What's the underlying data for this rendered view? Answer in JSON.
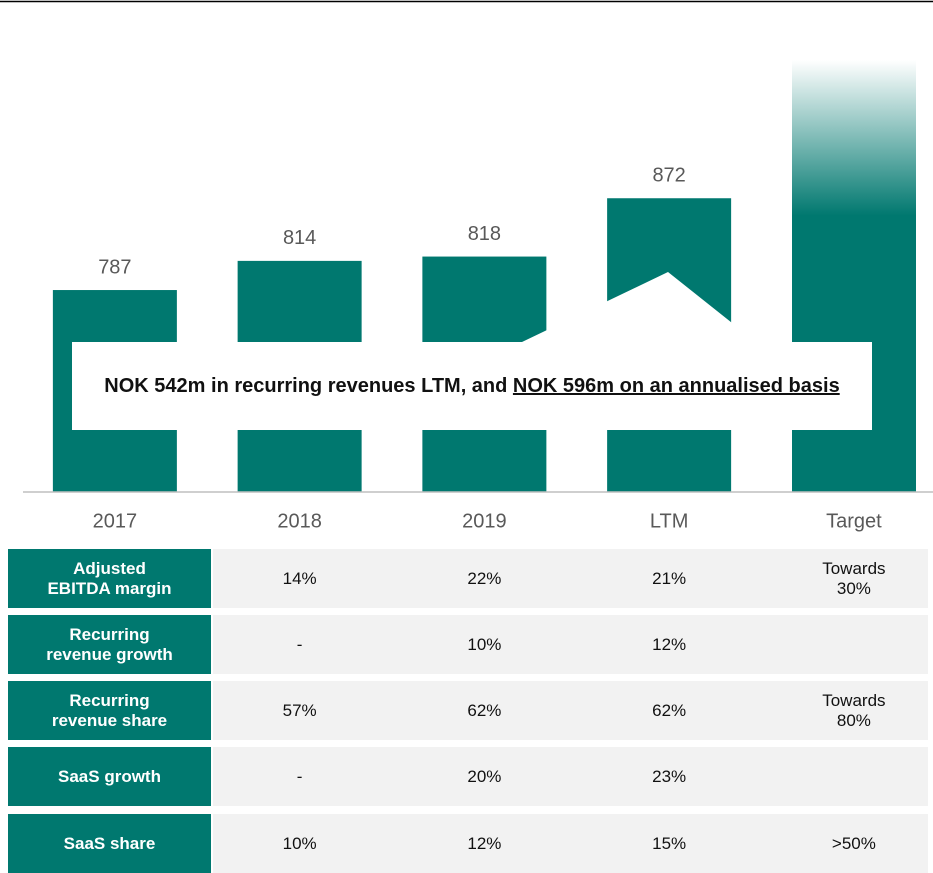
{
  "chart_data": {
    "type": "bar",
    "categories": [
      "2017",
      "2018",
      "2019",
      "LTM",
      "Target"
    ],
    "values": [
      787,
      814,
      818,
      872,
      null
    ],
    "color": "#00786f",
    "ylim": [
      600,
      1000
    ]
  },
  "callout": {
    "text": "NOK 542m in recurring revenues LTM, and ",
    "underlined": "NOK 596m on an annualised basis"
  },
  "table": {
    "rows": [
      {
        "label": "Adjusted\nEBITDA margin",
        "cells": [
          "14%",
          "22%",
          "21%",
          "Towards\n30%"
        ]
      },
      {
        "label": "Recurring\nrevenue growth",
        "cells": [
          "-",
          "10%",
          "12%",
          null
        ]
      },
      {
        "label": "Recurring\nrevenue share",
        "cells": [
          "57%",
          "62%",
          "62%",
          "Towards\n80%"
        ]
      },
      {
        "label": "SaaS growth",
        "cells": [
          "-",
          "20%",
          "23%",
          null
        ]
      },
      {
        "label": "SaaS share",
        "cells": [
          "10%",
          "12%",
          "15%",
          ">50%"
        ]
      }
    ]
  }
}
